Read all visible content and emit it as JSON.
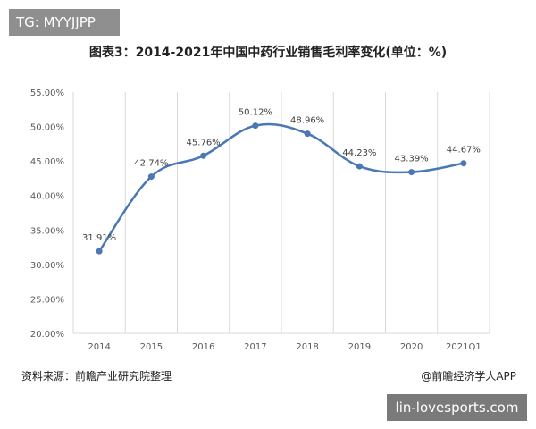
{
  "watermark_tag": "TG: MYYJJPP",
  "footer_bar": "lin-lovesports.com",
  "source_note": "资料来源：前瞻产业研究院整理",
  "credit_note": "@前瞻经济学人APP",
  "chart_data": {
    "type": "line",
    "title": "图表3：2014-2021年中国中药行业销售毛利率变化(单位：%)",
    "categories": [
      "2014",
      "2015",
      "2016",
      "2017",
      "2018",
      "2019",
      "2020",
      "2021Q1"
    ],
    "values": [
      31.91,
      42.74,
      45.76,
      50.12,
      48.96,
      44.23,
      43.39,
      44.67
    ],
    "data_labels": [
      "31.91%",
      "42.74%",
      "45.76%",
      "50.12%",
      "48.96%",
      "44.23%",
      "43.39%",
      "44.67%"
    ],
    "ylim": [
      20,
      55
    ],
    "yticks": [
      "20.00%",
      "25.00%",
      "30.00%",
      "35.00%",
      "40.00%",
      "45.00%",
      "50.00%",
      "55.00%"
    ],
    "grid": "vertical",
    "legend": "none",
    "smooth": true,
    "colors": {
      "line": "#4a78b4",
      "grid": "#d9d9d9",
      "text": "#595959"
    }
  }
}
